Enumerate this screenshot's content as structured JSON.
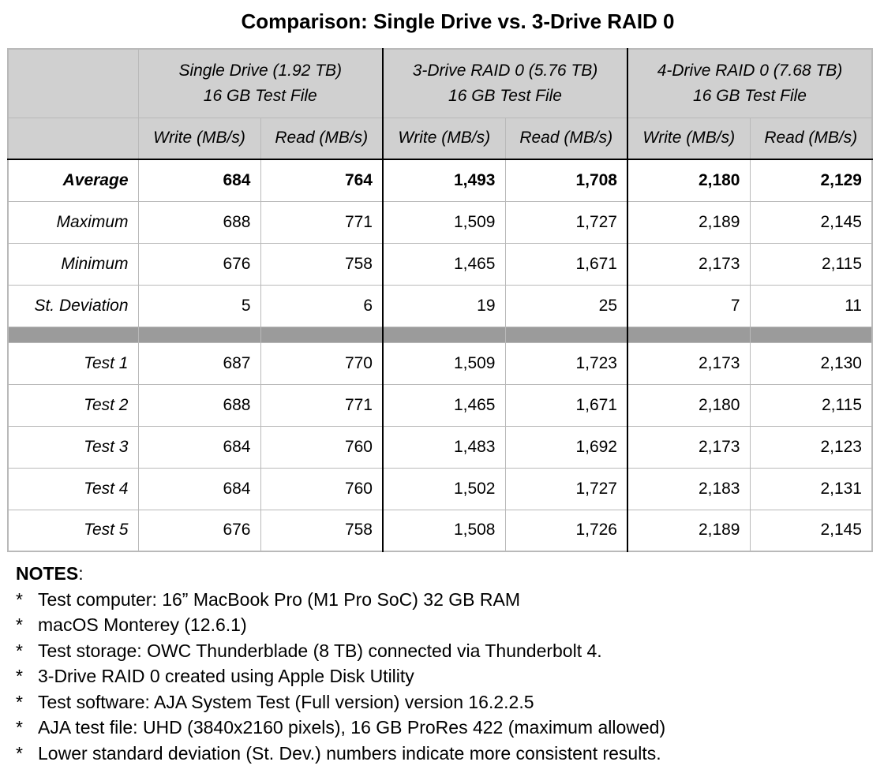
{
  "title": "Comparison: Single Drive vs. 3-Drive RAID 0",
  "groups": [
    {
      "line1": "Single Drive (1.92 TB)",
      "line2": "16 GB Test File"
    },
    {
      "line1": "3-Drive RAID 0 (5.76 TB)",
      "line2": "16 GB Test File"
    },
    {
      "line1": "4-Drive RAID 0 (7.68 TB)",
      "line2": "16 GB Test File"
    }
  ],
  "metric_labels": [
    "Write (MB/s)",
    "Read (MB/s)",
    "Write (MB/s)",
    "Read (MB/s)",
    "Write (MB/s)",
    "Read (MB/s)"
  ],
  "summary_rows": [
    {
      "label": "Average",
      "values": [
        "684",
        "764",
        "1,493",
        "1,708",
        "2,180",
        "2,129"
      ]
    },
    {
      "label": "Maximum",
      "values": [
        "688",
        "771",
        "1,509",
        "1,727",
        "2,189",
        "2,145"
      ]
    },
    {
      "label": "Minimum",
      "values": [
        "676",
        "758",
        "1,465",
        "1,671",
        "2,173",
        "2,115"
      ]
    },
    {
      "label": "St. Deviation",
      "values": [
        "5",
        "6",
        "19",
        "25",
        "7",
        "11"
      ]
    }
  ],
  "test_rows": [
    {
      "label": "Test 1",
      "values": [
        "687",
        "770",
        "1,509",
        "1,723",
        "2,173",
        "2,130"
      ]
    },
    {
      "label": "Test 2",
      "values": [
        "688",
        "771",
        "1,465",
        "1,671",
        "2,180",
        "2,115"
      ]
    },
    {
      "label": "Test 3",
      "values": [
        "684",
        "760",
        "1,483",
        "1,692",
        "2,173",
        "2,123"
      ]
    },
    {
      "label": "Test 4",
      "values": [
        "684",
        "760",
        "1,502",
        "1,727",
        "2,183",
        "2,131"
      ]
    },
    {
      "label": "Test 5",
      "values": [
        "676",
        "758",
        "1,508",
        "1,726",
        "2,189",
        "2,145"
      ]
    }
  ],
  "notes": {
    "heading": "NOTES",
    "heading_suffix": ":",
    "bullet": "*",
    "items": [
      "Test computer: 16” MacBook Pro (M1 Pro SoC) 32 GB RAM",
      "macOS Monterey (12.6.1)",
      "Test storage: OWC Thunderblade (8 TB) connected via Thunderbolt 4.",
      "3-Drive RAID 0 created using Apple Disk Utility",
      "Test software: AJA System Test (Full version) version 16.2.2.5",
      "AJA test file: UHD (3840x2160 pixels), 16 GB ProRes 422 (maximum allowed)",
      "Lower standard deviation (St. Dev.) numbers indicate more consistent results."
    ]
  }
}
